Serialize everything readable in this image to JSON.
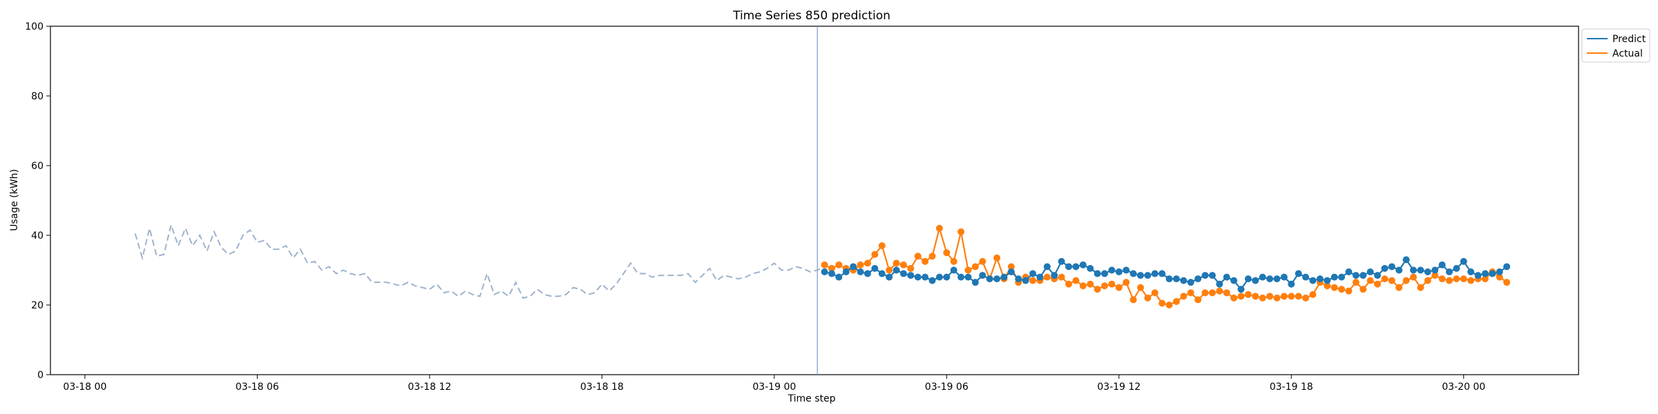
{
  "chart_data": {
    "type": "line",
    "title": "Time Series 850 prediction",
    "xlabel": "Time step",
    "ylabel": "Usage (kWh)",
    "ylim": [
      0,
      100
    ],
    "xlim": [
      "03-17 22:48",
      "03-20 04:00"
    ],
    "yticks": [
      0,
      20,
      40,
      60,
      80,
      100
    ],
    "xticks": [
      {
        "t": "03-18 00:00",
        "label": "03-18 00"
      },
      {
        "t": "03-18 06:00",
        "label": "03-18 06"
      },
      {
        "t": "03-18 12:00",
        "label": "03-18 12"
      },
      {
        "t": "03-18 18:00",
        "label": "03-18 18"
      },
      {
        "t": "03-19 00:00",
        "label": "03-19 00"
      },
      {
        "t": "03-19 06:00",
        "label": "03-19 06"
      },
      {
        "t": "03-19 12:00",
        "label": "03-19 12"
      },
      {
        "t": "03-19 18:00",
        "label": "03-19 18"
      },
      {
        "t": "03-20 00:00",
        "label": "03-20 00"
      }
    ],
    "grid": false,
    "legend_position": "top-right-outside",
    "forecast_start": "03-19 01:30",
    "history": {
      "start": "03-18 01:45",
      "step_minutes": 15,
      "color": "#9db2cc",
      "values": [
        40.5,
        33.5,
        42.0,
        34.0,
        34.5,
        43.0,
        37.0,
        42.0,
        37.0,
        40.0,
        35.5,
        41.0,
        36.5,
        34.5,
        35.5,
        40.0,
        41.5,
        38.0,
        38.5,
        36.0,
        36.0,
        37.0,
        33.5,
        36.0,
        32.0,
        32.5,
        30.0,
        31.0,
        29.0,
        30.0,
        29.0,
        28.5,
        29.0,
        26.5,
        26.5,
        26.5,
        26.0,
        25.5,
        26.5,
        25.5,
        25.0,
        24.5,
        26.0,
        23.5,
        24.0,
        22.5,
        24.0,
        23.0,
        22.5,
        29.0,
        23.0,
        24.0,
        22.5,
        26.5,
        22.0,
        22.5,
        24.5,
        23.0,
        22.5,
        22.5,
        23.0,
        25.0,
        24.5,
        23.0,
        23.5,
        26.0,
        24.0,
        26.0,
        29.0,
        32.0,
        29.0,
        29.0,
        28.0,
        28.5,
        28.5,
        28.5,
        28.5,
        29.0,
        26.5,
        28.5,
        30.5,
        27.0,
        28.5,
        28.0,
        27.5,
        28.0,
        29.0,
        29.5,
        30.5,
        32.0,
        30.0,
        30.0,
        31.0,
        30.5,
        29.5,
        30.0,
        31.0
      ]
    },
    "series": [
      {
        "name": "Predict",
        "color": "#1f77b4",
        "start": "03-19 01:45",
        "step_minutes": 15,
        "values": [
          29.5,
          29.0,
          28.0,
          29.5,
          31.0,
          29.5,
          29.0,
          30.5,
          29.0,
          28.0,
          30.0,
          29.0,
          28.5,
          28.0,
          28.0,
          27.0,
          28.0,
          28.0,
          30.0,
          28.0,
          28.0,
          26.5,
          28.5,
          27.5,
          27.5,
          28.0,
          29.5,
          27.5,
          27.0,
          29.0,
          28.0,
          31.0,
          28.5,
          32.5,
          31.0,
          31.0,
          31.5,
          30.5,
          29.0,
          29.0,
          30.0,
          29.5,
          30.0,
          29.0,
          28.5,
          28.5,
          29.0,
          29.0,
          27.5,
          27.5,
          27.0,
          26.5,
          27.5,
          28.5,
          28.5,
          26.0,
          28.0,
          27.0,
          24.5,
          27.5,
          27.0,
          28.0,
          27.5,
          27.5,
          28.0,
          26.0,
          29.0,
          28.0,
          27.0,
          27.5,
          27.0,
          28.0,
          28.0,
          29.5,
          28.5,
          28.5,
          29.5,
          28.5,
          30.5,
          31.0,
          30.0,
          33.0,
          30.0,
          30.0,
          29.5,
          30.0,
          31.5,
          29.5,
          30.5,
          32.5,
          29.5,
          28.5,
          29.0,
          29.0,
          29.5,
          31.0
        ]
      },
      {
        "name": "Actual",
        "color": "#ff7f0e",
        "start": "03-19 01:45",
        "step_minutes": 15,
        "values": [
          31.5,
          30.5,
          31.5,
          30.5,
          30.0,
          31.5,
          32.0,
          34.5,
          37.0,
          30.0,
          32.0,
          31.5,
          30.5,
          34.0,
          32.5,
          34.0,
          42.0,
          35.0,
          32.5,
          41.0,
          30.0,
          31.0,
          32.5,
          27.5,
          33.5,
          27.5,
          31.0,
          26.5,
          28.0,
          27.0,
          27.0,
          28.0,
          27.5,
          28.0,
          26.0,
          27.0,
          25.5,
          26.0,
          24.5,
          25.5,
          26.0,
          25.0,
          26.5,
          21.5,
          25.0,
          22.0,
          23.5,
          20.5,
          20.0,
          21.0,
          22.5,
          23.5,
          21.5,
          23.5,
          23.5,
          24.0,
          23.5,
          22.0,
          22.5,
          23.0,
          22.5,
          22.0,
          22.5,
          22.0,
          22.5,
          22.5,
          22.5,
          22.0,
          23.0,
          26.5,
          25.5,
          25.0,
          24.5,
          24.0,
          26.5,
          24.5,
          27.0,
          26.0,
          27.5,
          27.0,
          25.0,
          27.0,
          28.0,
          25.0,
          27.0,
          28.5,
          27.5,
          27.0,
          27.5,
          27.5,
          27.0,
          27.5,
          27.5,
          29.5,
          28.0,
          26.5
        ]
      }
    ]
  }
}
